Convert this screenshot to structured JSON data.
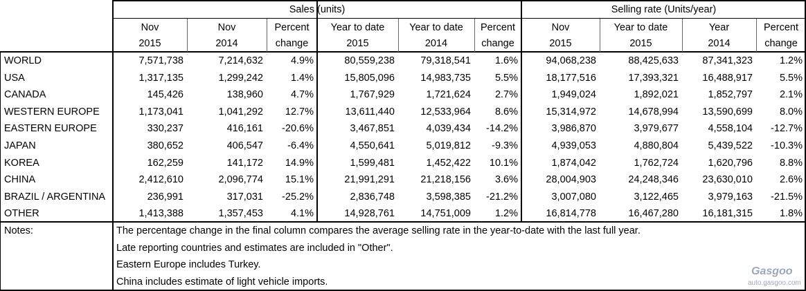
{
  "table": {
    "groups": [
      "Sales (units)",
      "Selling rate (Units/year)"
    ],
    "columns": [
      [
        "Nov",
        "2015"
      ],
      [
        "Nov",
        "2014"
      ],
      [
        "Percent",
        "change"
      ],
      [
        "Year to date",
        "2015"
      ],
      [
        "Year to date",
        "2014"
      ],
      [
        "Percent",
        "change"
      ],
      [
        "Nov",
        "2015"
      ],
      [
        "Year to date",
        "2015"
      ],
      [
        "Year",
        "2014"
      ],
      [
        "Percent",
        "change"
      ]
    ],
    "rows": [
      [
        "WORLD",
        "7,571,738",
        "7,214,632",
        "4.9%",
        "80,559,238",
        "79,318,541",
        "1.6%",
        "94,068,238",
        "88,425,633",
        "87,341,323",
        "1.2%"
      ],
      [
        "USA",
        "1,317,135",
        "1,299,242",
        "1.4%",
        "15,805,096",
        "14,983,735",
        "5.5%",
        "18,177,516",
        "17,393,321",
        "16,488,917",
        "5.5%"
      ],
      [
        "CANADA",
        "145,426",
        "138,960",
        "4.7%",
        "1,767,929",
        "1,721,624",
        "2.7%",
        "1,949,024",
        "1,892,021",
        "1,852,797",
        "2.1%"
      ],
      [
        "WESTERN EUROPE",
        "1,173,041",
        "1,041,292",
        "12.7%",
        "13,611,440",
        "12,533,964",
        "8.6%",
        "15,314,972",
        "14,678,994",
        "13,590,699",
        "8.0%"
      ],
      [
        "EASTERN EUROPE",
        "330,237",
        "416,161",
        "-20.6%",
        "3,467,851",
        "4,039,434",
        "-14.2%",
        "3,986,870",
        "3,979,677",
        "4,558,104",
        "-12.7%"
      ],
      [
        "JAPAN",
        "380,652",
        "406,547",
        "-6.4%",
        "4,550,641",
        "5,019,812",
        "-9.3%",
        "4,939,053",
        "4,880,804",
        "5,439,522",
        "-10.3%"
      ],
      [
        "KOREA",
        "162,259",
        "141,172",
        "14.9%",
        "1,599,481",
        "1,452,422",
        "10.1%",
        "1,874,042",
        "1,762,724",
        "1,620,796",
        "8.8%"
      ],
      [
        "CHINA",
        "2,412,610",
        "2,096,774",
        "15.1%",
        "21,991,291",
        "21,218,156",
        "3.6%",
        "28,004,903",
        "24,248,346",
        "23,630,010",
        "2.6%"
      ],
      [
        "BRAZIL / ARGENTINA",
        "236,991",
        "317,031",
        "-25.2%",
        "2,836,748",
        "3,598,385",
        "-21.2%",
        "3,007,080",
        "3,122,465",
        "3,979,163",
        "-21.5%"
      ],
      [
        "OTHER",
        "1,413,388",
        "1,357,453",
        "4.1%",
        "14,928,761",
        "14,751,009",
        "1.2%",
        "16,814,778",
        "16,467,280",
        "16,181,315",
        "1.8%"
      ]
    ],
    "notes_label": "Notes:",
    "notes": [
      "The percentage change in the final column compares the average selling rate in the year-to-date with the last full year.",
      "Late reporting countries and estimates are included in \"Other\".",
      "Eastern Europe includes Turkey.",
      "China includes estimate of light vehicle imports."
    ],
    "watermark": [
      "Gasgoo",
      "auto.gasgoo.com"
    ]
  }
}
